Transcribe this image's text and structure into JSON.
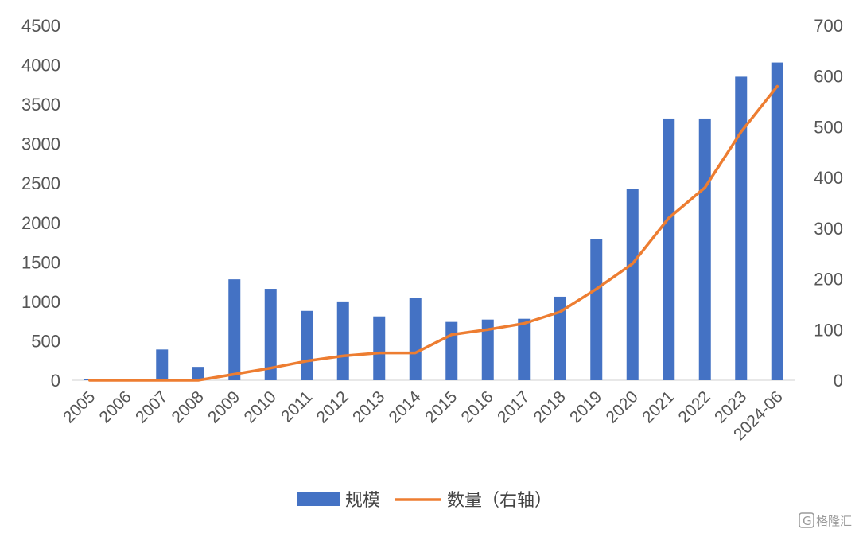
{
  "chart_data": {
    "type": "bar",
    "categories": [
      "2005",
      "2006",
      "2007",
      "2008",
      "2009",
      "2010",
      "2011",
      "2012",
      "2013",
      "2014",
      "2015",
      "2016",
      "2017",
      "2018",
      "2019",
      "2020",
      "2021",
      "2022",
      "2023",
      "2024-06"
    ],
    "series": [
      {
        "name": "规模",
        "type": "bar",
        "axis": "left",
        "color": "#4472C4",
        "values": [
          20,
          0,
          390,
          170,
          1280,
          1160,
          880,
          1000,
          810,
          1040,
          740,
          770,
          780,
          1060,
          1790,
          2430,
          3320,
          3320,
          3850,
          4030
        ]
      },
      {
        "name": "数量（右轴）",
        "type": "line",
        "axis": "right",
        "color": "#ED7D31",
        "values": [
          0,
          0,
          0,
          0,
          12,
          24,
          38,
          48,
          54,
          54,
          90,
          100,
          112,
          135,
          180,
          230,
          320,
          380,
          490,
          580
        ]
      }
    ],
    "y_left": {
      "range": [
        0,
        4500
      ],
      "ticks": [
        0,
        500,
        1000,
        1500,
        2000,
        2500,
        3000,
        3500,
        4000,
        4500
      ]
    },
    "y_right": {
      "range": [
        0,
        700
      ],
      "ticks": [
        0,
        100,
        200,
        300,
        400,
        500,
        600,
        700
      ]
    },
    "grid": false,
    "legend_position": "bottom-center"
  },
  "watermark": {
    "text": "格隆汇",
    "glyph": "G"
  }
}
